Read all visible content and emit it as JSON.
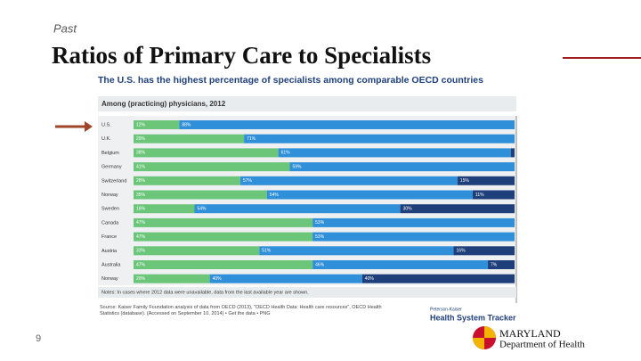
{
  "slide": {
    "section": "Past",
    "title": "Ratios of Primary Care to Specialists",
    "page_number": "9",
    "logo": {
      "line1": "MARYLAND",
      "line2": "Department of Health"
    }
  },
  "chart_data": {
    "type": "bar",
    "orientation": "horizontal",
    "stacked": true,
    "title": "The U.S. has the highest percentage of specialists among comparable OECD countries",
    "subtitle": "Among (practicing) physicians, 2012",
    "categories": [
      "U.S.",
      "U.K.",
      "Belgium",
      "Germany",
      "Switzerland",
      "Norway",
      "Sweden",
      "Canada",
      "France",
      "Austria",
      "Australia",
      "Norway"
    ],
    "series": [
      {
        "color": "#6cc67a",
        "values": [
          12,
          29,
          38,
          41,
          28,
          35,
          16,
          47,
          47,
          33,
          47,
          20
        ],
        "value_labels": [
          "12%",
          "29%",
          "38%",
          "41%",
          "28%",
          "35%",
          "16%",
          "47%",
          "47%",
          "33%",
          "47%",
          "20%"
        ]
      },
      {
        "color": "#2f8fd8",
        "values": [
          88,
          71,
          61,
          59,
          57,
          54,
          54,
          53,
          53,
          51,
          46,
          40
        ],
        "value_labels": [
          "88%",
          "71%",
          "61%",
          "59%",
          "57%",
          "54%",
          "54%",
          "53%",
          "53%",
          "51%",
          "46%",
          "40%"
        ]
      },
      {
        "color": "#1f3f7a",
        "values": [
          null,
          null,
          1,
          null,
          15,
          11,
          30,
          null,
          null,
          16,
          7,
          40
        ],
        "value_labels": [
          null,
          null,
          null,
          null,
          "15%",
          "11%",
          "30%",
          null,
          null,
          "16%",
          "7%",
          "40%"
        ]
      }
    ],
    "xlim": [
      0,
      100
    ],
    "notes": "Notes: In cases where 2012 data were unavailable, data from the last available year are shown.",
    "source": "Source: Kaiser Family Foundation analysis of data from OECD (2013), \"OECD Health Data: Health care resources\", OECD Health Statistics (database). (Accessed on September 10, 2014) • Get the data • PNG",
    "brand": {
      "line1": "Peterson-Kaiser",
      "line2": "Health System Tracker"
    }
  }
}
